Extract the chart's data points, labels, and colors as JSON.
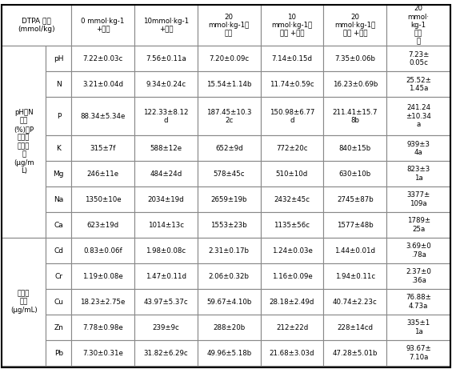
{
  "col_headers": [
    "DTPA 浓度\n(mmol/kg)",
    "0 mmol·kg-1\n+植物",
    "10mmol·kg-1\n+植物",
    "20\nmmol·kg-1＋\n植物",
    "10\nmmol·kg-1＋\n隔层 +植物",
    "20\nmmol·kg-1＋\n隔层 +植物",
    "20\nmmol·\nkg-1\n无植\n物"
  ],
  "row_groups": [
    {
      "group_label": "pH、N\n含量\n(%)及P\n和矿质\n元素含\n量\n(µg/m\nL)",
      "rows": [
        {
          "row_label": "pH",
          "values": [
            "7.22±0.03c",
            "7.56±0.11a",
            "7.20±0.09c",
            "7.14±0.15d",
            "7.35±0.06b",
            "7.23±\n0.05c"
          ]
        },
        {
          "row_label": "N",
          "values": [
            "3.21±0.04d",
            "9.34±0.24c",
            "15.54±1.14b",
            "11.74±0.59c",
            "16.23±0.69b",
            "25.52±\n1.45a"
          ]
        },
        {
          "row_label": "P",
          "values": [
            "88.34±5.34e",
            "122.33±8.12\nd",
            "187.45±10.3\n2c",
            "150.98±6.77\nd",
            "211.41±15.7\n8b",
            "241.24\n±10.34\na"
          ]
        },
        {
          "row_label": "K",
          "values": [
            "315±7f",
            "588±12e",
            "652±9d",
            "772±20c",
            "840±15b",
            "939±3\n4a"
          ]
        },
        {
          "row_label": "Mg",
          "values": [
            "246±11e",
            "484±24d",
            "578±45c",
            "510±10d",
            "630±10b",
            "823±3\n1a"
          ]
        },
        {
          "row_label": "Na",
          "values": [
            "1350±10e",
            "2034±19d",
            "2659±19b",
            "2432±45c",
            "2745±87b",
            "3377±\n109a"
          ]
        },
        {
          "row_label": "Ca",
          "values": [
            "623±19d",
            "1014±13c",
            "1553±23b",
            "1135±56c",
            "1577±48b",
            "1789±\n25a"
          ]
        }
      ]
    },
    {
      "group_label": "重金属\n含量\n(µg/mL)",
      "rows": [
        {
          "row_label": "Cd",
          "values": [
            "0.83±0.06f",
            "1.98±0.08c",
            "2.31±0.17b",
            "1.24±0.03e",
            "1.44±0.01d",
            "3.69±0\n.78a"
          ]
        },
        {
          "row_label": "Cr",
          "values": [
            "1.19±0.08e",
            "1.47±0.11d",
            "2.06±0.32b",
            "1.16±0.09e",
            "1.94±0.11c",
            "2.37±0\n.36a"
          ]
        },
        {
          "row_label": "Cu",
          "values": [
            "18.23±2.75e",
            "43.97±5.37c",
            "59.67±4.10b",
            "28.18±2.49d",
            "40.74±2.23c",
            "76.88±\n4.73a"
          ]
        },
        {
          "row_label": "Zn",
          "values": [
            "7.78±0.98e",
            "239±9c",
            "288±20b",
            "212±22d",
            "228±14cd",
            "335±1\n1a"
          ]
        },
        {
          "row_label": "Pb",
          "values": [
            "7.30±0.31e",
            "31.82±6.29c",
            "49.96±5.18b",
            "21.68±3.03d",
            "47.28±5.01b",
            "93.67±\n7.10a"
          ]
        }
      ]
    }
  ]
}
